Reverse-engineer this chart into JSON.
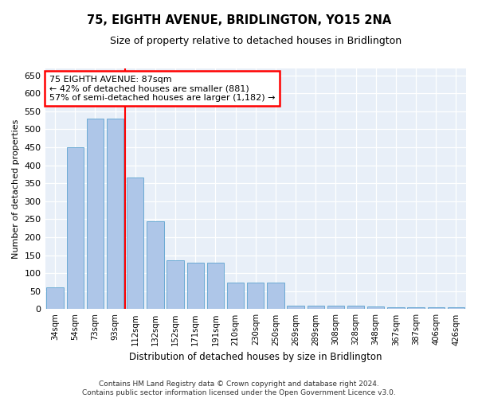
{
  "title": "75, EIGHTH AVENUE, BRIDLINGTON, YO15 2NA",
  "subtitle": "Size of property relative to detached houses in Bridlington",
  "xlabel": "Distribution of detached houses by size in Bridlington",
  "ylabel": "Number of detached properties",
  "categories": [
    "34sqm",
    "54sqm",
    "73sqm",
    "93sqm",
    "112sqm",
    "132sqm",
    "152sqm",
    "171sqm",
    "191sqm",
    "210sqm",
    "230sqm",
    "250sqm",
    "269sqm",
    "289sqm",
    "308sqm",
    "328sqm",
    "348sqm",
    "367sqm",
    "387sqm",
    "406sqm",
    "426sqm"
  ],
  "values": [
    60,
    450,
    530,
    530,
    365,
    245,
    135,
    130,
    130,
    75,
    75,
    75,
    10,
    10,
    10,
    10,
    7,
    5,
    5,
    5,
    5
  ],
  "bar_color": "#aec6e8",
  "bar_edge_color": "#6baad4",
  "redline_index": 3,
  "annotation_text": "75 EIGHTH AVENUE: 87sqm\n← 42% of detached houses are smaller (881)\n57% of semi-detached houses are larger (1,182) →",
  "annotation_box_color": "white",
  "annotation_box_edge_color": "red",
  "ylim": [
    0,
    670
  ],
  "yticks": [
    0,
    50,
    100,
    150,
    200,
    250,
    300,
    350,
    400,
    450,
    500,
    550,
    600,
    650
  ],
  "background_color": "#e8eff8",
  "grid_color": "white",
  "footnote": "Contains HM Land Registry data © Crown copyright and database right 2024.\nContains public sector information licensed under the Open Government Licence v3.0."
}
